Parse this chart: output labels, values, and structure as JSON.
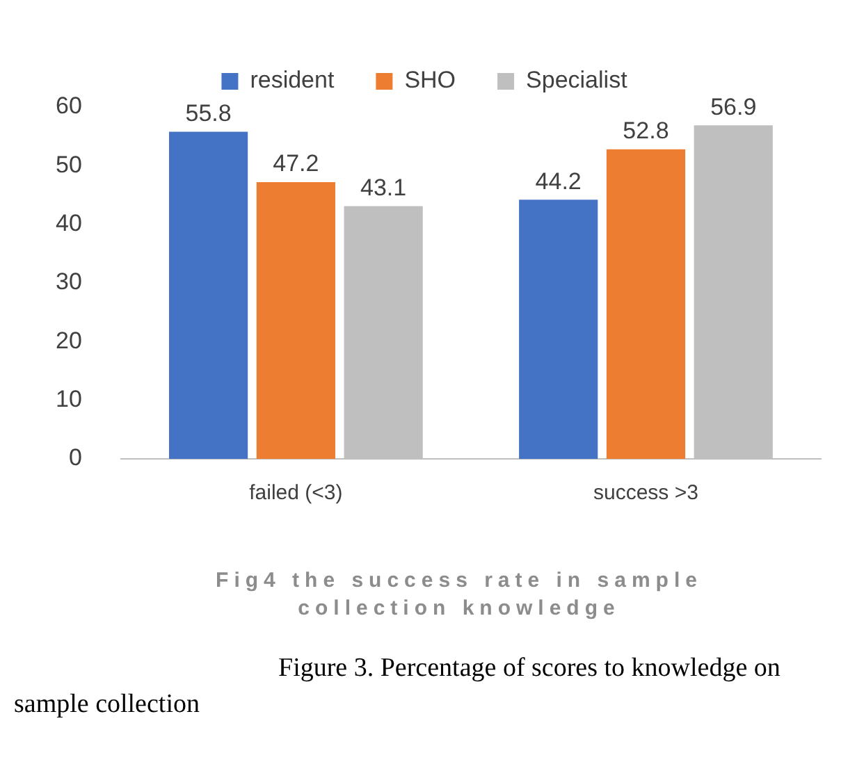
{
  "chart_data": {
    "type": "bar",
    "title": "Fig4 the success rate in sample collection knowledge",
    "categories": [
      "failed (<3)",
      "success >3"
    ],
    "series": [
      {
        "name": "resident",
        "color": "#4472c4",
        "values": [
          55.8,
          44.2
        ]
      },
      {
        "name": "SHO",
        "color": "#ed7d31",
        "values": [
          47.2,
          52.8
        ]
      },
      {
        "name": "Specialist",
        "color": "#bfbfbf",
        "values": [
          43.1,
          56.9
        ]
      }
    ],
    "ylim": [
      0,
      60
    ],
    "yticks": [
      0,
      10,
      20,
      30,
      40,
      50,
      60
    ],
    "grid": false,
    "legend": "top",
    "data_labels": true,
    "annotations": [
      "Figure 3. Percentage of scores to knowledge on sample collection"
    ]
  }
}
